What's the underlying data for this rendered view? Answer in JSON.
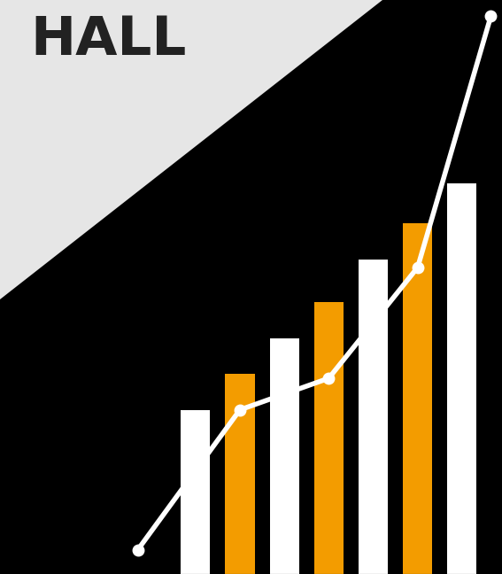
{
  "chart_data": {
    "type": "bar",
    "annotations": [
      "HALL"
    ],
    "x": [
      0,
      1,
      2,
      3,
      4,
      5,
      6
    ],
    "values": [
      28.5,
      34.8,
      41.0,
      47.4,
      54.8,
      61.1,
      68.1
    ],
    "colors": [
      "#ffffff",
      "#f39c00",
      "#ffffff",
      "#f39c00",
      "#ffffff",
      "#f39c00",
      "#ffffff"
    ],
    "series": [
      {
        "type": "line",
        "x": [
          -1.3,
          1,
          3,
          5,
          6.65
        ],
        "values": [
          4.2,
          28.6,
          34.1,
          53.4,
          97.2
        ],
        "color": "#ffffff",
        "marker": "o",
        "line_style": "solid"
      }
    ],
    "xlim": [
      -4.4,
      6.9
    ],
    "ylim": [
      0,
      100
    ],
    "tick_labels": false,
    "grid": false
  }
}
